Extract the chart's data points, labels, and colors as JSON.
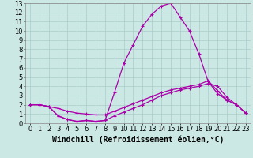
{
  "xlabel": "Windchill (Refroidissement éolien,°C)",
  "xlim": [
    -0.5,
    23.5
  ],
  "ylim": [
    0,
    13
  ],
  "xticks": [
    0,
    1,
    2,
    3,
    4,
    5,
    6,
    7,
    8,
    9,
    10,
    11,
    12,
    13,
    14,
    15,
    16,
    17,
    18,
    19,
    20,
    21,
    22,
    23
  ],
  "yticks": [
    0,
    1,
    2,
    3,
    4,
    5,
    6,
    7,
    8,
    9,
    10,
    11,
    12,
    13
  ],
  "background_color": "#cce8e4",
  "grid_color": "#aaccca",
  "line_color": "#aa00aa",
  "line1_x": [
    0,
    1,
    2,
    3,
    4,
    5,
    6,
    7,
    8,
    9,
    10,
    11,
    12,
    13,
    14,
    15,
    16,
    17,
    18,
    19,
    20,
    21,
    22,
    23
  ],
  "line1_y": [
    2.0,
    2.0,
    1.8,
    0.8,
    0.4,
    0.2,
    0.3,
    0.2,
    0.3,
    3.3,
    6.5,
    8.5,
    10.5,
    11.8,
    12.7,
    13.0,
    11.5,
    10.0,
    7.5,
    4.5,
    3.2,
    2.5,
    2.0,
    1.1
  ],
  "line2_x": [
    0,
    1,
    2,
    3,
    4,
    5,
    6,
    7,
    8,
    9,
    10,
    11,
    12,
    13,
    14,
    15,
    16,
    17,
    18,
    19,
    20,
    21,
    22,
    23
  ],
  "line2_y": [
    2.0,
    2.0,
    1.8,
    0.8,
    0.4,
    0.2,
    0.3,
    0.2,
    0.3,
    0.8,
    1.2,
    1.6,
    2.0,
    2.5,
    3.0,
    3.3,
    3.6,
    3.8,
    4.0,
    4.3,
    4.0,
    2.8,
    2.0,
    1.1
  ],
  "line3_x": [
    0,
    1,
    2,
    3,
    4,
    5,
    6,
    7,
    8,
    9,
    10,
    11,
    12,
    13,
    14,
    15,
    16,
    17,
    18,
    19,
    20,
    21,
    22,
    23
  ],
  "line3_y": [
    2.0,
    2.0,
    1.8,
    1.6,
    1.3,
    1.1,
    1.0,
    0.9,
    0.9,
    1.3,
    1.7,
    2.1,
    2.5,
    2.9,
    3.3,
    3.6,
    3.8,
    4.0,
    4.2,
    4.6,
    3.5,
    2.5,
    2.0,
    1.1
  ],
  "tick_fontsize": 6,
  "xlabel_fontsize": 7,
  "marker": "+"
}
